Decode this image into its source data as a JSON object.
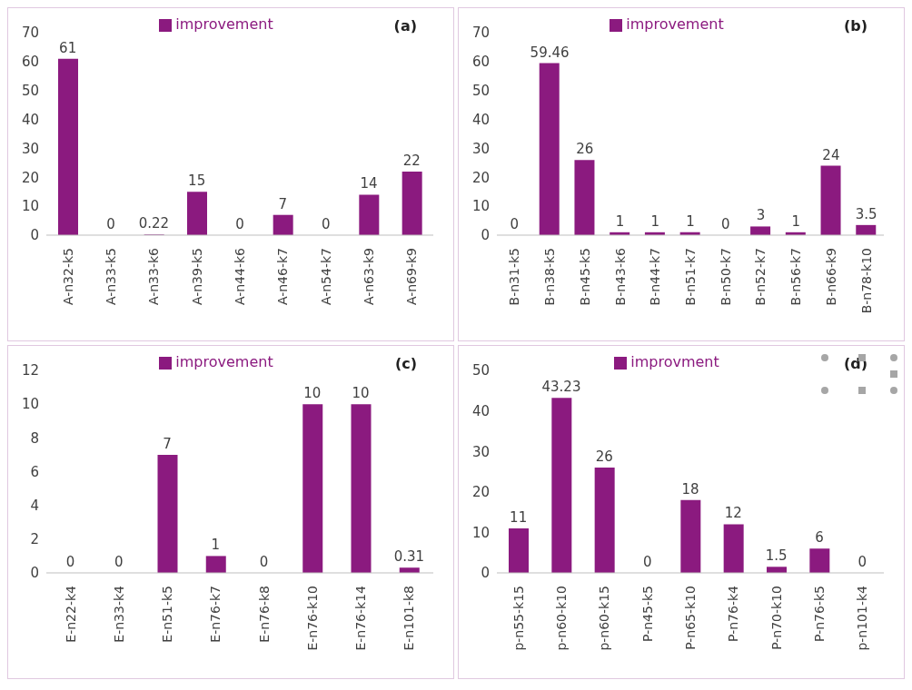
{
  "chart_data": [
    {
      "type": "bar",
      "title": "(a)",
      "categories": [
        "A-n32-k5",
        "A-n33-k5",
        "A-n33-k6",
        "A-n39-k5",
        "A-n44-k6",
        "A-n46-k7",
        "A-n54-k7",
        "A-n63-k9",
        "A-n69-k9"
      ],
      "series": [
        {
          "name": "improvement",
          "color": "#8b1a7f",
          "values": [
            61,
            0,
            0.22,
            15,
            0,
            7,
            0,
            14,
            22
          ]
        }
      ],
      "ylim": [
        0,
        70
      ],
      "yticks": [
        0,
        10,
        20,
        30,
        40,
        50,
        60,
        70
      ],
      "grid": false,
      "legend": "top",
      "data_labels": true
    },
    {
      "type": "bar",
      "title": "(b)",
      "categories": [
        "B-n31-k5",
        "B-n38-k5",
        "B-n45-k5",
        "B-n43-k6",
        "B-n44-k7",
        "B-n51-k7",
        "B-n50-k7",
        "B-n52-k7",
        "B-n56-k7",
        "B-n66-k9",
        "B-n78-k10"
      ],
      "series": [
        {
          "name": "improvement",
          "color": "#8b1a7f",
          "values": [
            0,
            59.46,
            26,
            1,
            1,
            1,
            0,
            3,
            1,
            24,
            3.5
          ]
        }
      ],
      "ylim": [
        0,
        70
      ],
      "yticks": [
        0,
        10,
        20,
        30,
        40,
        50,
        60,
        70
      ],
      "grid": false,
      "legend": "top",
      "data_labels": true
    },
    {
      "type": "bar",
      "title": "(c)",
      "categories": [
        "E-n22-k4",
        "E-n33-k4",
        "E-n51-k5",
        "E-n76-k7",
        "E-n76-k8",
        "E-n76-k10",
        "E-n76-k14",
        "E-n101-k8"
      ],
      "series": [
        {
          "name": "improvement",
          "color": "#8b1a7f",
          "values": [
            0,
            0,
            7,
            1,
            0,
            10,
            10,
            0.31
          ]
        }
      ],
      "ylim": [
        0,
        12
      ],
      "yticks": [
        0,
        2,
        4,
        6,
        8,
        10,
        12
      ],
      "grid": false,
      "legend": "top",
      "data_labels": true
    },
    {
      "type": "bar",
      "title": "(d)",
      "categories": [
        "p-n55-k15",
        "p-n60-k10",
        "p-n60-k15",
        "P-n45-k5",
        "P-n65-k10",
        "P-n76-k4",
        "P-n70-k10",
        "P-n76-k5",
        "p-n101-k4"
      ],
      "series": [
        {
          "name": "improvment",
          "color": "#8b1a7f",
          "values": [
            11,
            43.23,
            26,
            0,
            18,
            12,
            1.5,
            6,
            0
          ]
        }
      ],
      "ylim": [
        0,
        50
      ],
      "yticks": [
        0,
        10,
        20,
        30,
        40,
        50
      ],
      "grid": false,
      "legend": "top",
      "data_labels": true
    }
  ]
}
